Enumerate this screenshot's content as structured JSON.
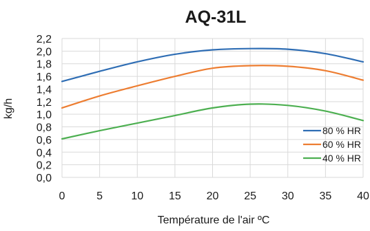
{
  "chart_data": {
    "type": "line",
    "title": "AQ-31L",
    "xlabel": "Température de l'air ºC",
    "ylabel": "kg/h",
    "x": [
      0,
      5,
      10,
      15,
      20,
      25,
      30,
      35,
      40
    ],
    "xlim": [
      0,
      40
    ],
    "ylim": [
      0,
      2.2
    ],
    "x_ticks": [
      "0",
      "5",
      "10",
      "15",
      "20",
      "25",
      "30",
      "35",
      "40"
    ],
    "y_ticks": [
      "0,0",
      "0,2",
      "0,4",
      "0,6",
      "0,8",
      "1,0",
      "1,2",
      "1,4",
      "1,6",
      "1,8",
      "2,0",
      "2,2"
    ],
    "grid": true,
    "legend_position": "bottom-right",
    "series": [
      {
        "name": "80 % HR",
        "color": "#2e6db4",
        "values": [
          1.52,
          1.68,
          1.83,
          1.95,
          2.02,
          2.04,
          2.03,
          1.96,
          1.83
        ]
      },
      {
        "name": "60 % HR",
        "color": "#ed7d31",
        "values": [
          1.1,
          1.29,
          1.45,
          1.6,
          1.73,
          1.77,
          1.76,
          1.69,
          1.54
        ]
      },
      {
        "name": "40 % HR",
        "color": "#4caf50",
        "values": [
          0.61,
          0.74,
          0.86,
          0.98,
          1.1,
          1.16,
          1.14,
          1.05,
          0.9
        ]
      }
    ]
  }
}
